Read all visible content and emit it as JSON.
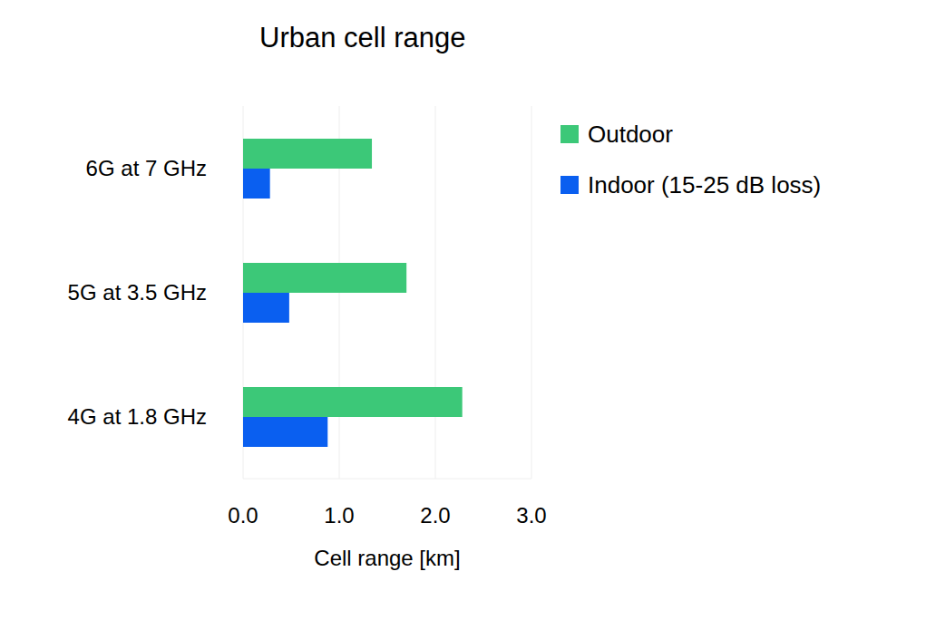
{
  "chart_data": {
    "type": "bar",
    "title": "Urban cell range",
    "orientation": "horizontal",
    "categories": [
      "6G at 7 GHz",
      "5G at 3.5 GHz",
      "4G at 1.8 GHz"
    ],
    "series": [
      {
        "name": "Outdoor",
        "color": "#3cc878",
        "values": [
          1.34,
          1.7,
          2.28
        ]
      },
      {
        "name": "Indoor (15-25 dB loss)",
        "color": "#0a5ff0",
        "values": [
          0.28,
          0.48,
          0.88
        ]
      }
    ],
    "x_label": "Cell range [km]",
    "xlim": [
      0,
      3
    ],
    "xticks": [
      {
        "value": 0,
        "label": "0.0"
      },
      {
        "value": 1,
        "label": "1.0"
      },
      {
        "value": 2,
        "label": "2.0"
      },
      {
        "value": 3,
        "label": "3.0"
      }
    ],
    "grid": true,
    "legend": "upper right"
  }
}
